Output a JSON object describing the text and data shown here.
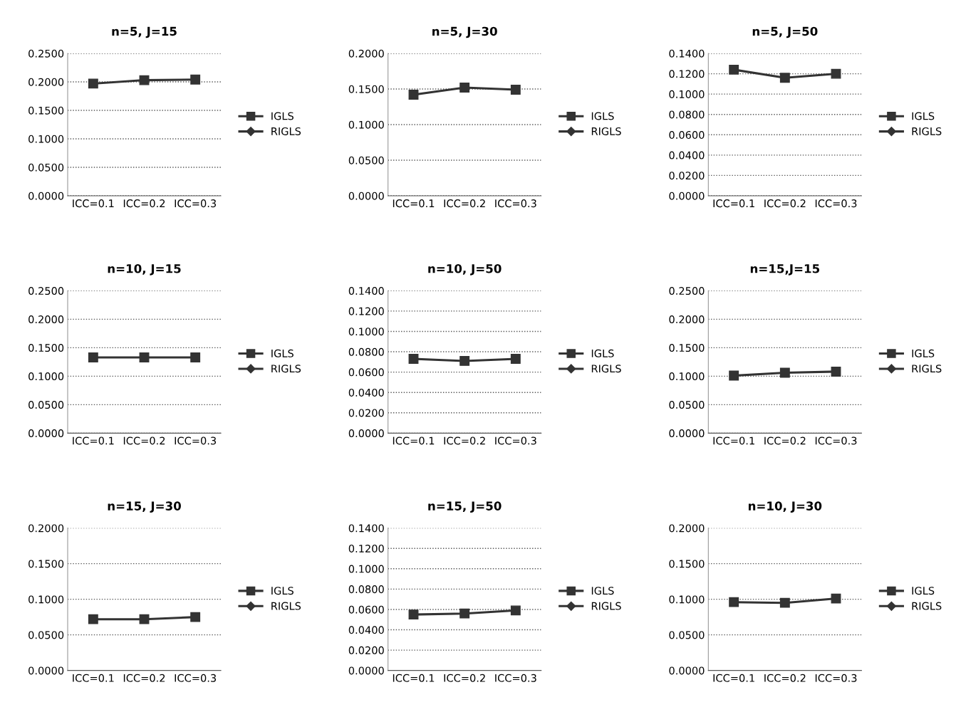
{
  "chart_data": [
    {
      "type": "line",
      "title": "n=5, J=15",
      "categories": [
        "ICC=0.1",
        "ICC=0.2",
        "ICC=0.3"
      ],
      "series": [
        {
          "name": "IGLS",
          "color": "#333333",
          "marker": "square",
          "values": [
            0.197,
            0.203,
            0.204
          ]
        },
        {
          "name": "RIGLS",
          "color": "#333333",
          "marker": "diamond",
          "values": [
            null,
            null,
            null
          ]
        }
      ],
      "ylim": [
        0,
        0.25
      ],
      "yticks": [
        {
          "value": 0,
          "label": "0.0000"
        },
        {
          "value": 0.05,
          "label": "0.0500"
        },
        {
          "value": 0.1,
          "label": "0.1000"
        },
        {
          "value": 0.15,
          "label": "0.1500"
        },
        {
          "value": 0.2,
          "label": "0.2000"
        },
        {
          "value": 0.25,
          "label": "0.2500"
        }
      ],
      "grid": "y",
      "legend": "right"
    },
    {
      "type": "line",
      "title": "n=5, J=30",
      "categories": [
        "ICC=0.1",
        "ICC=0.2",
        "ICC=0.3"
      ],
      "series": [
        {
          "name": "IGLS",
          "color": "#333333",
          "marker": "square",
          "values": [
            0.142,
            0.152,
            0.149
          ]
        },
        {
          "name": "RIGLS",
          "color": "#333333",
          "marker": "diamond",
          "values": [
            null,
            null,
            null
          ]
        }
      ],
      "ylim": [
        0,
        0.2
      ],
      "yticks": [
        {
          "value": 0,
          "label": "0.0000"
        },
        {
          "value": 0.05,
          "label": "0.0500"
        },
        {
          "value": 0.1,
          "label": "0.1000"
        },
        {
          "value": 0.15,
          "label": "0.1500"
        },
        {
          "value": 0.2,
          "label": "0.2000"
        }
      ],
      "grid": "y",
      "legend": "right"
    },
    {
      "type": "line",
      "title": "n=5, J=50",
      "categories": [
        "ICC=0.1",
        "ICC=0.2",
        "ICC=0.3"
      ],
      "series": [
        {
          "name": "IGLS",
          "color": "#333333",
          "marker": "square",
          "values": [
            0.124,
            0.116,
            0.12
          ]
        },
        {
          "name": "RIGLS",
          "color": "#333333",
          "marker": "diamond",
          "values": [
            null,
            null,
            null
          ]
        }
      ],
      "ylim": [
        0,
        0.14
      ],
      "yticks": [
        {
          "value": 0,
          "label": "0.0000"
        },
        {
          "value": 0.02,
          "label": "0.0200"
        },
        {
          "value": 0.04,
          "label": "0.0400"
        },
        {
          "value": 0.06,
          "label": "0.0600"
        },
        {
          "value": 0.08,
          "label": "0.0800"
        },
        {
          "value": 0.1,
          "label": "0.1000"
        },
        {
          "value": 0.12,
          "label": "0.1200"
        },
        {
          "value": 0.14,
          "label": "0.1400"
        }
      ],
      "grid": "y",
      "legend": "right"
    },
    {
      "type": "line",
      "title": "n=10, J=15",
      "categories": [
        "ICC=0.1",
        "ICC=0.2",
        "ICC=0.3"
      ],
      "series": [
        {
          "name": "IGLS",
          "color": "#333333",
          "marker": "square",
          "values": [
            0.133,
            0.133,
            0.133
          ]
        },
        {
          "name": "RIGLS",
          "color": "#333333",
          "marker": "diamond",
          "values": [
            null,
            null,
            null
          ]
        }
      ],
      "ylim": [
        0,
        0.25
      ],
      "yticks": [
        {
          "value": 0,
          "label": "0.0000"
        },
        {
          "value": 0.05,
          "label": "0.0500"
        },
        {
          "value": 0.1,
          "label": "0.1000"
        },
        {
          "value": 0.15,
          "label": "0.1500"
        },
        {
          "value": 0.2,
          "label": "0.2000"
        },
        {
          "value": 0.25,
          "label": "0.2500"
        }
      ],
      "grid": "y",
      "legend": "right"
    },
    {
      "type": "line",
      "title": "n=10, J=50",
      "categories": [
        "ICC=0.1",
        "ICC=0.2",
        "ICC=0.3"
      ],
      "series": [
        {
          "name": "IGLS",
          "color": "#333333",
          "marker": "square",
          "values": [
            0.073,
            0.071,
            0.073
          ]
        },
        {
          "name": "RIGLS",
          "color": "#333333",
          "marker": "diamond",
          "values": [
            null,
            null,
            null
          ]
        }
      ],
      "ylim": [
        0,
        0.14
      ],
      "yticks": [
        {
          "value": 0,
          "label": "0.0000"
        },
        {
          "value": 0.02,
          "label": "0.0200"
        },
        {
          "value": 0.04,
          "label": "0.0400"
        },
        {
          "value": 0.06,
          "label": "0.0600"
        },
        {
          "value": 0.08,
          "label": "0.0800"
        },
        {
          "value": 0.1,
          "label": "0.1000"
        },
        {
          "value": 0.12,
          "label": "0.1200"
        },
        {
          "value": 0.14,
          "label": "0.1400"
        }
      ],
      "grid": "y",
      "legend": "right"
    },
    {
      "type": "line",
      "title": "n=15,J=15",
      "categories": [
        "ICC=0.1",
        "ICC=0.2",
        "ICC=0.3"
      ],
      "series": [
        {
          "name": "IGLS",
          "color": "#333333",
          "marker": "square",
          "values": [
            0.101,
            0.106,
            0.108
          ]
        },
        {
          "name": "RIGLS",
          "color": "#333333",
          "marker": "diamond",
          "values": [
            null,
            null,
            null
          ]
        }
      ],
      "ylim": [
        0,
        0.25
      ],
      "yticks": [
        {
          "value": 0,
          "label": "0.0000"
        },
        {
          "value": 0.05,
          "label": "0.0500"
        },
        {
          "value": 0.1,
          "label": "0.1000"
        },
        {
          "value": 0.15,
          "label": "0.1500"
        },
        {
          "value": 0.2,
          "label": "0.2000"
        },
        {
          "value": 0.25,
          "label": "0.2500"
        }
      ],
      "grid": "y",
      "legend": "right"
    },
    {
      "type": "line",
      "title": "n=15, J=30",
      "categories": [
        "ICC=0.1",
        "ICC=0.2",
        "ICC=0.3"
      ],
      "series": [
        {
          "name": "IGLS",
          "color": "#333333",
          "marker": "square",
          "values": [
            0.072,
            0.072,
            0.075
          ]
        },
        {
          "name": "RIGLS",
          "color": "#333333",
          "marker": "diamond",
          "values": [
            null,
            null,
            null
          ]
        }
      ],
      "ylim": [
        0,
        0.2
      ],
      "yticks": [
        {
          "value": 0,
          "label": "0.0000"
        },
        {
          "value": 0.05,
          "label": "0.0500"
        },
        {
          "value": 0.1,
          "label": "0.1000"
        },
        {
          "value": 0.15,
          "label": "0.1500"
        },
        {
          "value": 0.2,
          "label": "0.2000"
        }
      ],
      "grid": "y",
      "legend": "right"
    },
    {
      "type": "line",
      "title": "n=15, J=50",
      "categories": [
        "ICC=0.1",
        "ICC=0.2",
        "ICC=0.3"
      ],
      "series": [
        {
          "name": "IGLS",
          "color": "#333333",
          "marker": "square",
          "values": [
            0.055,
            0.056,
            0.059
          ]
        },
        {
          "name": "RIGLS",
          "color": "#333333",
          "marker": "diamond",
          "values": [
            null,
            null,
            null
          ]
        }
      ],
      "ylim": [
        0,
        0.14
      ],
      "yticks": [
        {
          "value": 0,
          "label": "0.0000"
        },
        {
          "value": 0.02,
          "label": "0.0200"
        },
        {
          "value": 0.04,
          "label": "0.0400"
        },
        {
          "value": 0.06,
          "label": "0.0600"
        },
        {
          "value": 0.08,
          "label": "0.0800"
        },
        {
          "value": 0.1,
          "label": "0.1000"
        },
        {
          "value": 0.12,
          "label": "0.1200"
        },
        {
          "value": 0.14,
          "label": "0.1400"
        }
      ],
      "grid": "y",
      "legend": "right"
    },
    {
      "type": "line",
      "title": "n=10, J=30",
      "categories": [
        "ICC=0.1",
        "ICC=0.2",
        "ICC=0.3"
      ],
      "series": [
        {
          "name": "IGLS",
          "color": "#333333",
          "marker": "square",
          "values": [
            0.096,
            0.095,
            0.101
          ]
        },
        {
          "name": "RIGLS",
          "color": "#333333",
          "marker": "diamond",
          "values": [
            null,
            null,
            null
          ]
        }
      ],
      "ylim": [
        0,
        0.2
      ],
      "yticks": [
        {
          "value": 0,
          "label": "0.0000"
        },
        {
          "value": 0.05,
          "label": "0.0500"
        },
        {
          "value": 0.1,
          "label": "0.1000"
        },
        {
          "value": 0.15,
          "label": "0.1500"
        },
        {
          "value": 0.2,
          "label": "0.2000"
        }
      ],
      "grid": "y",
      "legend": "right"
    }
  ]
}
